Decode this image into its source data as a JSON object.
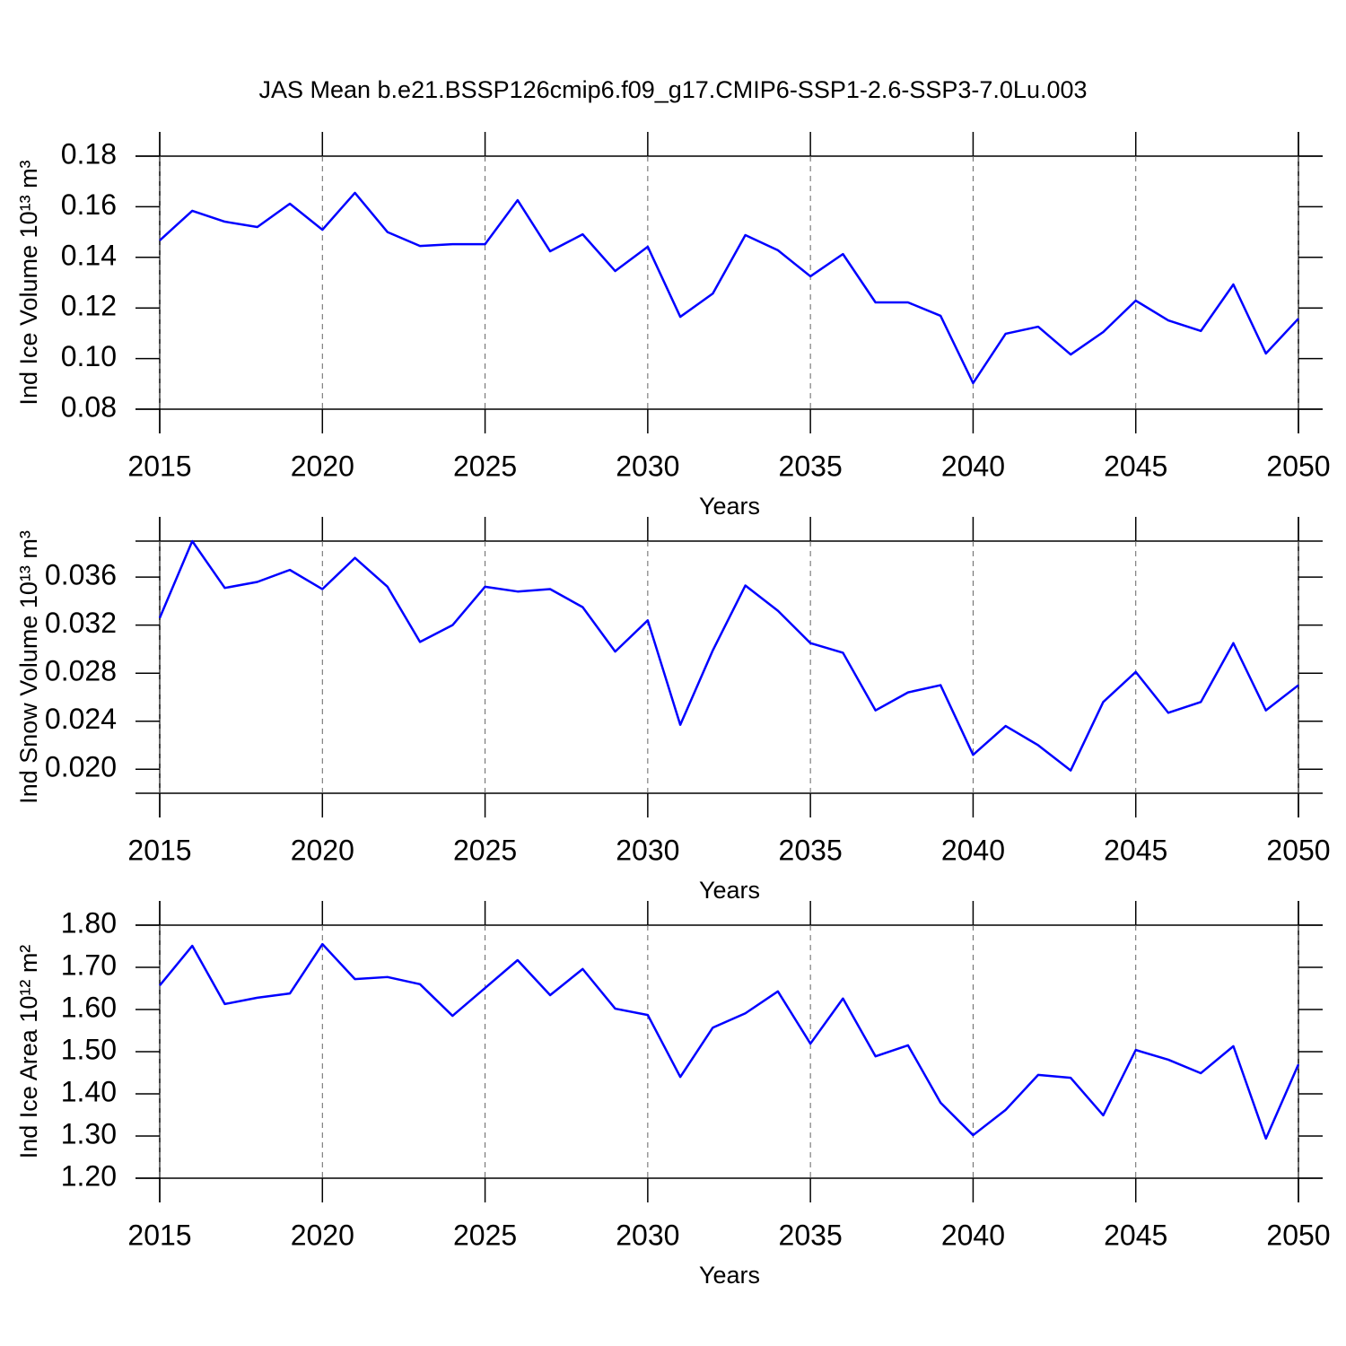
{
  "title": "JAS Mean b.e21.BSSP126cmip6.f09_g17.CMIP6-SSP1-2.6-SSP3-7.0Lu.003",
  "chart_data": [
    {
      "type": "line",
      "ylabel": "Ind Ice Volume 10¹³ m³",
      "xlabel": "Years",
      "x": [
        2015,
        2016,
        2017,
        2018,
        2019,
        2020,
        2021,
        2022,
        2023,
        2024,
        2025,
        2026,
        2027,
        2028,
        2029,
        2030,
        2031,
        2032,
        2033,
        2034,
        2035,
        2036,
        2037,
        2038,
        2039,
        2040,
        2041,
        2042,
        2043,
        2044,
        2045,
        2046,
        2047,
        2048,
        2049,
        2050
      ],
      "series": [
        {
          "color": "#0000ff",
          "values": [
            0.1467,
            0.1584,
            0.1541,
            0.152,
            0.1612,
            0.1509,
            0.1655,
            0.15,
            0.1445,
            0.1452,
            0.1452,
            0.1626,
            0.1424,
            0.1491,
            0.1346,
            0.1442,
            0.1165,
            0.1257,
            0.1488,
            0.1428,
            0.1325,
            0.1413,
            0.1222,
            0.1222,
            0.1169,
            0.0903,
            0.1098,
            0.1126,
            0.1016,
            0.1105,
            0.1229,
            0.1151,
            0.1109,
            0.1293,
            0.102,
            0.1158
          ]
        }
      ],
      "xlim": [
        2015,
        2050
      ],
      "xticks": [
        2015,
        2020,
        2025,
        2030,
        2035,
        2040,
        2045,
        2050
      ],
      "ylim": [
        0.08,
        0.18
      ],
      "yticks": [
        {
          "value": 0.08,
          "label": "0.08"
        },
        {
          "value": 0.1,
          "label": "0.10"
        },
        0.12,
        0.14,
        0.16,
        0.18
      ],
      "grid": true
    },
    {
      "type": "line",
      "ylabel": "Ind Snow Volume 10¹³ m³",
      "xlabel": "Years",
      "x": [
        2015,
        2016,
        2017,
        2018,
        2019,
        2020,
        2021,
        2022,
        2023,
        2024,
        2025,
        2026,
        2027,
        2028,
        2029,
        2030,
        2031,
        2032,
        2033,
        2034,
        2035,
        2036,
        2037,
        2038,
        2039,
        2040,
        2041,
        2042,
        2043,
        2044,
        2045,
        2046,
        2047,
        2048,
        2049,
        2050
      ],
      "series": [
        {
          "color": "#0000ff",
          "values": [
            0.0326,
            0.039,
            0.0351,
            0.0356,
            0.0366,
            0.035,
            0.0376,
            0.0352,
            0.0306,
            0.032,
            0.0352,
            0.0348,
            0.035,
            0.0335,
            0.0298,
            0.0324,
            0.0237,
            0.0299,
            0.0353,
            0.0332,
            0.0305,
            0.0297,
            0.0249,
            0.0264,
            0.027,
            0.0212,
            0.0236,
            0.022,
            0.0199,
            0.0256,
            0.0281,
            0.0247,
            0.0256,
            0.0305,
            0.0249,
            0.027
          ]
        }
      ],
      "xlim": [
        2015,
        2050
      ],
      "xticks": [
        2015,
        2020,
        2025,
        2030,
        2035,
        2040,
        2045,
        2050
      ],
      "ylim": [
        0.018,
        0.039
      ],
      "yticks": [
        {
          "value": 0.02,
          "label": "0.020"
        },
        0.024,
        0.028,
        0.032,
        0.036
      ],
      "grid": true
    },
    {
      "type": "line",
      "ylabel": "Ind Ice Area 10¹² m²",
      "xlabel": "Years",
      "x": [
        2015,
        2016,
        2017,
        2018,
        2019,
        2020,
        2021,
        2022,
        2023,
        2024,
        2025,
        2026,
        2027,
        2028,
        2029,
        2030,
        2031,
        2032,
        2033,
        2034,
        2035,
        2036,
        2037,
        2038,
        2039,
        2040,
        2041,
        2042,
        2043,
        2044,
        2045,
        2046,
        2047,
        2048,
        2049,
        2050
      ],
      "series": [
        {
          "color": "#0000ff",
          "values": [
            1.657,
            1.751,
            1.613,
            1.628,
            1.638,
            1.755,
            1.672,
            1.677,
            1.66,
            1.585,
            1.651,
            1.717,
            1.634,
            1.696,
            1.602,
            1.587,
            1.44,
            1.557,
            1.591,
            1.643,
            1.519,
            1.626,
            1.489,
            1.515,
            1.379,
            1.302,
            1.362,
            1.445,
            1.438,
            1.349,
            1.504,
            1.481,
            1.449,
            1.513,
            1.294,
            1.47
          ]
        }
      ],
      "xlim": [
        2015,
        2050
      ],
      "xticks": [
        2015,
        2020,
        2025,
        2030,
        2035,
        2040,
        2045,
        2050
      ],
      "ylim": [
        1.2,
        1.8
      ],
      "yticks": [
        {
          "value": 1.2,
          "label": "1.20"
        },
        {
          "value": 1.3,
          "label": "1.30"
        },
        {
          "value": 1.4,
          "label": "1.40"
        },
        {
          "value": 1.5,
          "label": "1.50"
        },
        {
          "value": 1.6,
          "label": "1.60"
        },
        {
          "value": 1.7,
          "label": "1.70"
        },
        {
          "value": 1.8,
          "label": "1.80"
        }
      ],
      "grid": true
    }
  ]
}
